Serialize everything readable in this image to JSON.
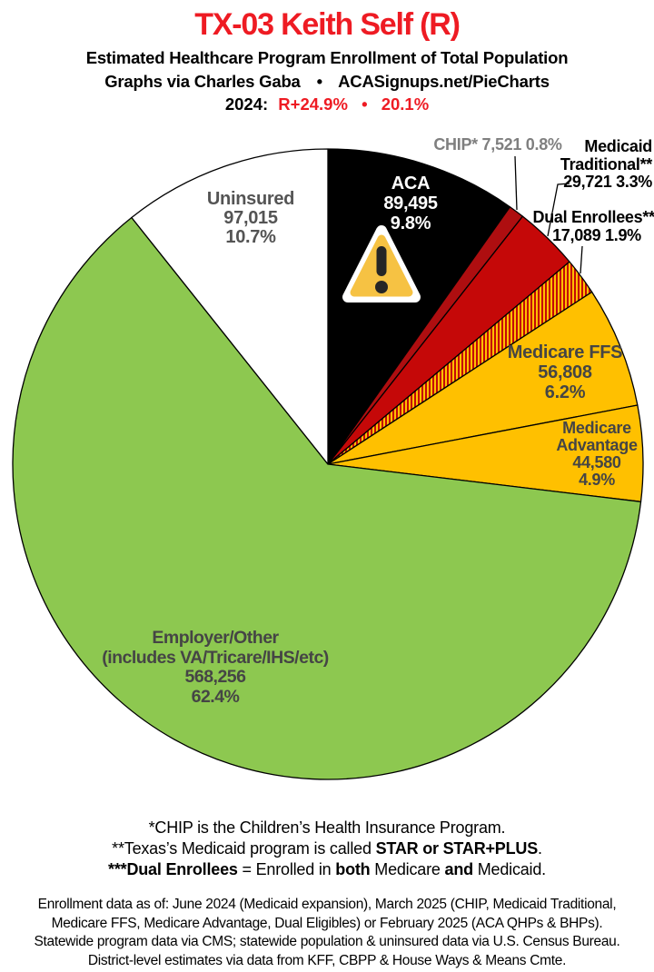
{
  "header": {
    "title": "TX-03 Keith Self (R)",
    "title_color": "#EE1B23",
    "subtitle": "Estimated Healthcare Program Enrollment of Total Population",
    "attribution_left": "Graphs via Charles Gaba",
    "separator": "•",
    "attribution_right": "ACASignups.net/PieCharts",
    "year_label": "2024:",
    "partisan_lean": "R+24.9%",
    "partisan_share": "20.1%",
    "partisan_color": "#EE1B23"
  },
  "chart_data": {
    "type": "pie",
    "title": "TX-03 Keith Self (R) — Estimated Healthcare Program Enrollment of Total Population",
    "start_angle": "12 o'clock, clockwise",
    "legend_position": "labels on and around slices",
    "slices": [
      {
        "id": "aca",
        "label": "ACA",
        "value": 89495,
        "value_display": "89,495",
        "pct": 9.8,
        "pct_display": "9.8%",
        "color": "#000000",
        "lines": [
          "ACA",
          "89,495",
          "9.8%"
        ]
      },
      {
        "id": "chip",
        "label": "CHIP*",
        "value": 7521,
        "value_display": "7,521",
        "pct": 0.8,
        "pct_display": "0.8%",
        "color": "#AE0E10",
        "lines": [
          "CHIP* 7,521 0.8%"
        ]
      },
      {
        "id": "medicaid-traditional",
        "label": "Medicaid Traditional**",
        "value": 29721,
        "value_display": "29,721",
        "pct": 3.3,
        "pct_display": "3.3%",
        "color": "#C50808",
        "lines": [
          "Medicaid",
          "Traditional**",
          "29,721 3.3%"
        ]
      },
      {
        "id": "dual-enrollees",
        "label": "Dual Enrollees***",
        "value": 17089,
        "value_display": "17,089",
        "pct": 1.9,
        "pct_display": "1.9%",
        "color": "#C50808",
        "pattern": "stripes",
        "pattern_colors": [
          "#C50808",
          "#FFC000"
        ],
        "lines": [
          "Dual Enrollees***",
          "17,089 1.9%"
        ]
      },
      {
        "id": "medicare-ffs",
        "label": "Medicare FFS",
        "value": 56808,
        "value_display": "56,808",
        "pct": 6.2,
        "pct_display": "6.2%",
        "color": "#FFC000",
        "lines": [
          "Medicare FFS",
          "56,808",
          "6.2%"
        ]
      },
      {
        "id": "medicare-advantage",
        "label": "Medicare Advantage",
        "value": 44580,
        "value_display": "44,580",
        "pct": 4.9,
        "pct_display": "4.9%",
        "color": "#FFC000",
        "lines": [
          "Medicare",
          "Advantage",
          "44,580",
          "4.9%"
        ]
      },
      {
        "id": "employer-other",
        "label": "Employer/Other (includes VA/Tricare/IHS/etc)",
        "value": 568256,
        "value_display": "568,256",
        "pct": 62.4,
        "pct_display": "62.4%",
        "color": "#8DC850",
        "lines": [
          "Employer/Other",
          "(includes VA/Tricare/IHS/etc)",
          "568,256",
          "62.4%"
        ]
      },
      {
        "id": "uninsured",
        "label": "Uninsured",
        "value": 97015,
        "value_display": "97,015",
        "pct": 10.7,
        "pct_display": "10.7%",
        "color": "#FFFFFF",
        "lines": [
          "Uninsured",
          "97,015",
          "10.7%"
        ]
      }
    ]
  },
  "warning_icon": {
    "glyph": "⚠",
    "fill": "#F6C243",
    "mark_color": "#262626"
  },
  "footnotes": [
    {
      "segments": [
        {
          "text": "*CHIP is the Children’s Health Insurance Program.",
          "bold": false
        }
      ]
    },
    {
      "segments": [
        {
          "text": "**Texas’s Medicaid program is called ",
          "bold": false
        },
        {
          "text": "STAR or STAR+PLUS",
          "bold": true
        },
        {
          "text": ".",
          "bold": false
        }
      ]
    },
    {
      "segments": [
        {
          "text": "***Dual Enrollees",
          "bold": true
        },
        {
          "text": " = Enrolled in ",
          "bold": false
        },
        {
          "text": "both",
          "bold": true
        },
        {
          "text": " Medicare ",
          "bold": false
        },
        {
          "text": "and",
          "bold": true
        },
        {
          "text": " Medicaid.",
          "bold": false
        }
      ]
    }
  ],
  "source_note": {
    "lines": [
      "Enrollment data as of: June 2024 (Medicaid expansion), March 2025 (CHIP, Medicaid Traditional,",
      "Medicare FFS, Medicare Advantage, Dual Eligibles) or February 2025 (ACA QHPs & BHPs).",
      "Statewide program data via CMS; statewide population & uninsured data via U.S. Census Bureau.",
      "District-level estimates via data from KFF, CBPP & House Ways & Means Cmte."
    ]
  }
}
